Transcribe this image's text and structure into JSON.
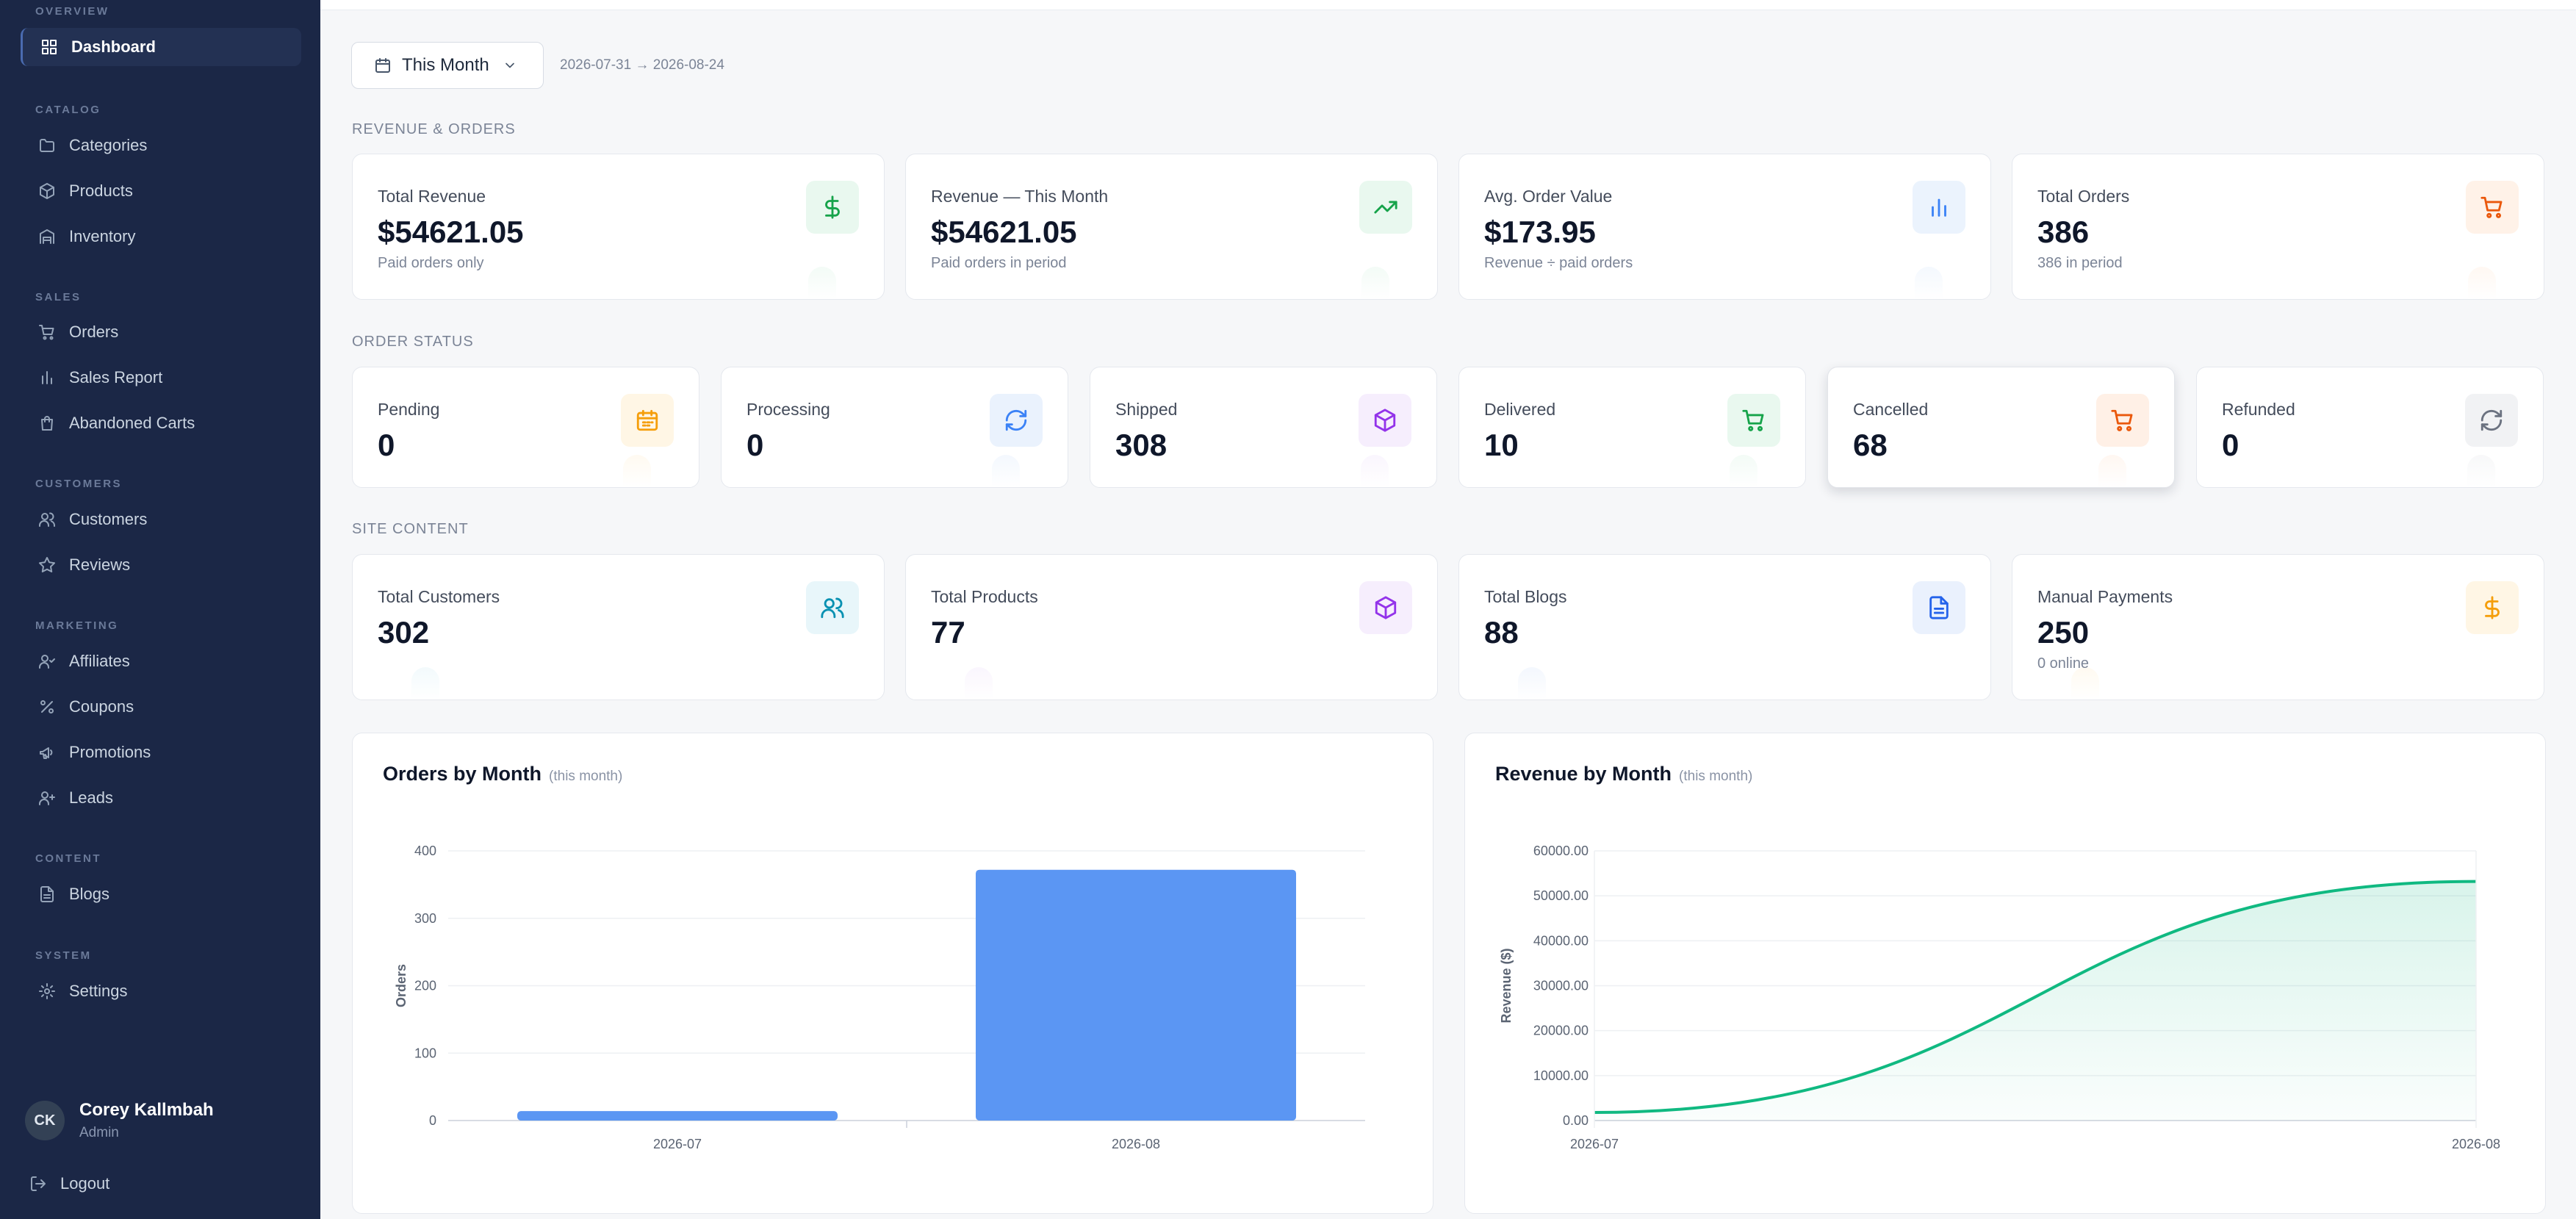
{
  "sidebar": {
    "sections": {
      "overview": "OVERVIEW",
      "catalog": "CATALOG",
      "sales": "SALES",
      "customers": "CUSTOMERS",
      "marketing": "MARKETING",
      "content": "CONTENT",
      "system": "SYSTEM"
    },
    "items": {
      "dashboard": "Dashboard",
      "categories": "Categories",
      "products": "Products",
      "inventory": "Inventory",
      "orders": "Orders",
      "sales_report": "Sales Report",
      "abandoned_carts": "Abandoned Carts",
      "customers": "Customers",
      "reviews": "Reviews",
      "affiliates": "Affiliates",
      "coupons": "Coupons",
      "promotions": "Promotions",
      "leads": "Leads",
      "blogs": "Blogs",
      "settings": "Settings"
    },
    "user": {
      "initials": "CK",
      "name": "Corey Kallmbah",
      "role": "Admin"
    },
    "logout": "Logout"
  },
  "filter": {
    "period": "This Month",
    "date_range": "2026-07-31 → 2026-08-24"
  },
  "sections": {
    "revenue": "REVENUE & ORDERS",
    "status": "ORDER STATUS",
    "content": "SITE CONTENT"
  },
  "revenue_cards": [
    {
      "label": "Total Revenue",
      "value": "$54621.05",
      "sub": "Paid orders only",
      "icon": "dollar-icon",
      "color": "#16a34a",
      "bg": "#e9f8ef"
    },
    {
      "label": "Revenue — This Month",
      "value": "$54621.05",
      "sub": "Paid orders in period",
      "icon": "trending-up-icon",
      "color": "#16a34a",
      "bg": "#e9f8ef"
    },
    {
      "label": "Avg. Order Value",
      "value": "$173.95",
      "sub": "Revenue ÷ paid orders",
      "icon": "bar-chart-icon",
      "color": "#3b82f6",
      "bg": "#ebf3fd"
    },
    {
      "label": "Total Orders",
      "value": "386",
      "sub": "386 in period",
      "icon": "cart-icon",
      "color": "#ea580c",
      "bg": "#fff2e8"
    }
  ],
  "status_cards": [
    {
      "label": "Pending",
      "value": "0",
      "icon": "calendar-icon",
      "color": "#f59e0b",
      "bg": "#fff6e5"
    },
    {
      "label": "Processing",
      "value": "0",
      "icon": "refresh-icon",
      "color": "#3b82f6",
      "bg": "#eaf2fd"
    },
    {
      "label": "Shipped",
      "value": "308",
      "icon": "box-icon",
      "color": "#9333ea",
      "bg": "#f6eefd"
    },
    {
      "label": "Delivered",
      "value": "10",
      "icon": "cart-icon",
      "color": "#16a34a",
      "bg": "#e9f8ef"
    },
    {
      "label": "Cancelled",
      "value": "68",
      "icon": "cart-icon",
      "color": "#ea580c",
      "bg": "#fff0e6"
    },
    {
      "label": "Refunded",
      "value": "0",
      "icon": "refresh-icon",
      "color": "#6b7280",
      "bg": "#f1f2f4"
    }
  ],
  "content_cards": [
    {
      "label": "Total Customers",
      "value": "302",
      "sub": "",
      "icon": "users-icon",
      "color": "#0891b2",
      "bg": "#e8f6fa"
    },
    {
      "label": "Total Products",
      "value": "77",
      "sub": "",
      "icon": "box-icon",
      "color": "#9333ea",
      "bg": "#f6eefd"
    },
    {
      "label": "Total Blogs",
      "value": "88",
      "sub": "",
      "icon": "file-icon",
      "color": "#2563eb",
      "bg": "#eaf1fd"
    },
    {
      "label": "Manual Payments",
      "value": "250",
      "sub": "0 online",
      "icon": "dollar-icon",
      "color": "#f59e0b",
      "bg": "#fff6e5"
    }
  ],
  "chart_data": [
    {
      "type": "bar",
      "title": "Orders by Month",
      "subtitle": "(this month)",
      "categories": [
        "2026-07",
        "2026-08"
      ],
      "values": [
        14,
        372
      ],
      "xlabel": "",
      "ylabel": "Orders",
      "ylim": [
        0,
        400
      ],
      "yticks": [
        "0",
        "100",
        "200",
        "300",
        "400"
      ],
      "grid": true,
      "color": "#5b96f3"
    },
    {
      "type": "area",
      "title": "Revenue by Month",
      "subtitle": "(this month)",
      "x": [
        "2026-07",
        "2026-08"
      ],
      "values": [
        1800,
        53200
      ],
      "xlabel": "",
      "ylabel": "Revenue ($)",
      "ylim": [
        0,
        60000
      ],
      "yticks": [
        "0.00",
        "10000.00",
        "20000.00",
        "30000.00",
        "40000.00",
        "50000.00",
        "60000.00"
      ],
      "grid": true,
      "color": "#10b981"
    }
  ]
}
